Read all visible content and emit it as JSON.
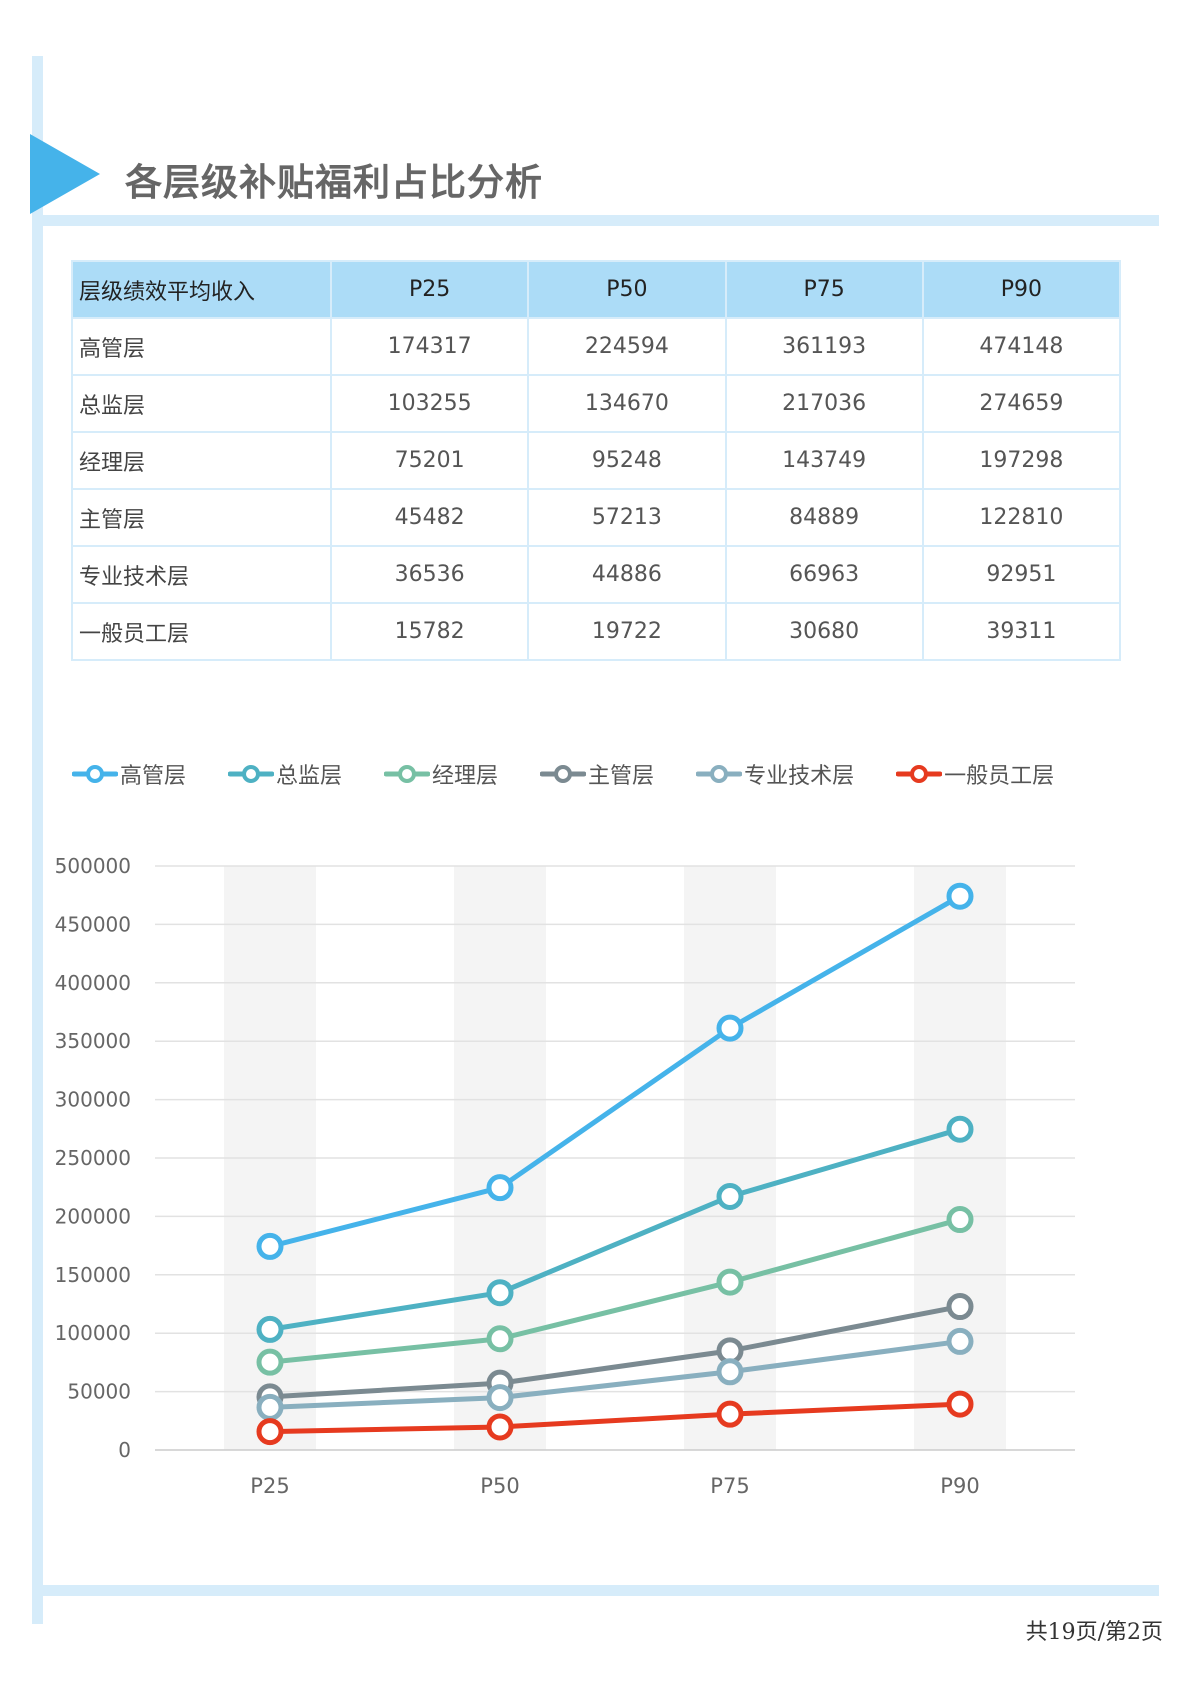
{
  "page": {
    "title": "各层级补贴福利占比分析",
    "page_number": "共19页/第2页"
  },
  "table": {
    "header": [
      "层级绩效平均收入",
      "P25",
      "P50",
      "P75",
      "P90"
    ],
    "rows": [
      [
        "高管层",
        "174317",
        "224594",
        "361193",
        "474148"
      ],
      [
        "总监层",
        "103255",
        "134670",
        "217036",
        "274659"
      ],
      [
        "经理层",
        "75201",
        "95248",
        "143749",
        "197298"
      ],
      [
        "主管层",
        "45482",
        "57213",
        "84889",
        "122810"
      ],
      [
        "专业技术层",
        "36536",
        "44886",
        "66963",
        "92951"
      ],
      [
        "一般员工层",
        "15782",
        "19722",
        "30680",
        "39311"
      ]
    ]
  },
  "chart_data": {
    "type": "line",
    "categories": [
      "P25",
      "P50",
      "P75",
      "P90"
    ],
    "ylim": [
      0,
      500000
    ],
    "yticks": [
      "0",
      "50000",
      "100000",
      "150000",
      "200000",
      "250000",
      "300000",
      "350000",
      "400000",
      "450000",
      "500000"
    ],
    "grid": true,
    "legend_position": "top",
    "series": [
      {
        "name": "高管层",
        "color": "#45b3ea",
        "values": [
          174317,
          224594,
          361193,
          474148
        ]
      },
      {
        "name": "总监层",
        "color": "#4eb1c3",
        "values": [
          103255,
          134670,
          217036,
          274659
        ]
      },
      {
        "name": "经理层",
        "color": "#77c0a4",
        "values": [
          75201,
          95248,
          143749,
          197298
        ]
      },
      {
        "name": "主管层",
        "color": "#7b8a91",
        "values": [
          45482,
          57213,
          84889,
          122810
        ]
      },
      {
        "name": "专业技术层",
        "color": "#89afbf",
        "values": [
          36536,
          44886,
          66963,
          92951
        ]
      },
      {
        "name": "一般员工层",
        "color": "#e63a1f",
        "values": [
          15782,
          19722,
          30680,
          39311
        ]
      }
    ]
  }
}
